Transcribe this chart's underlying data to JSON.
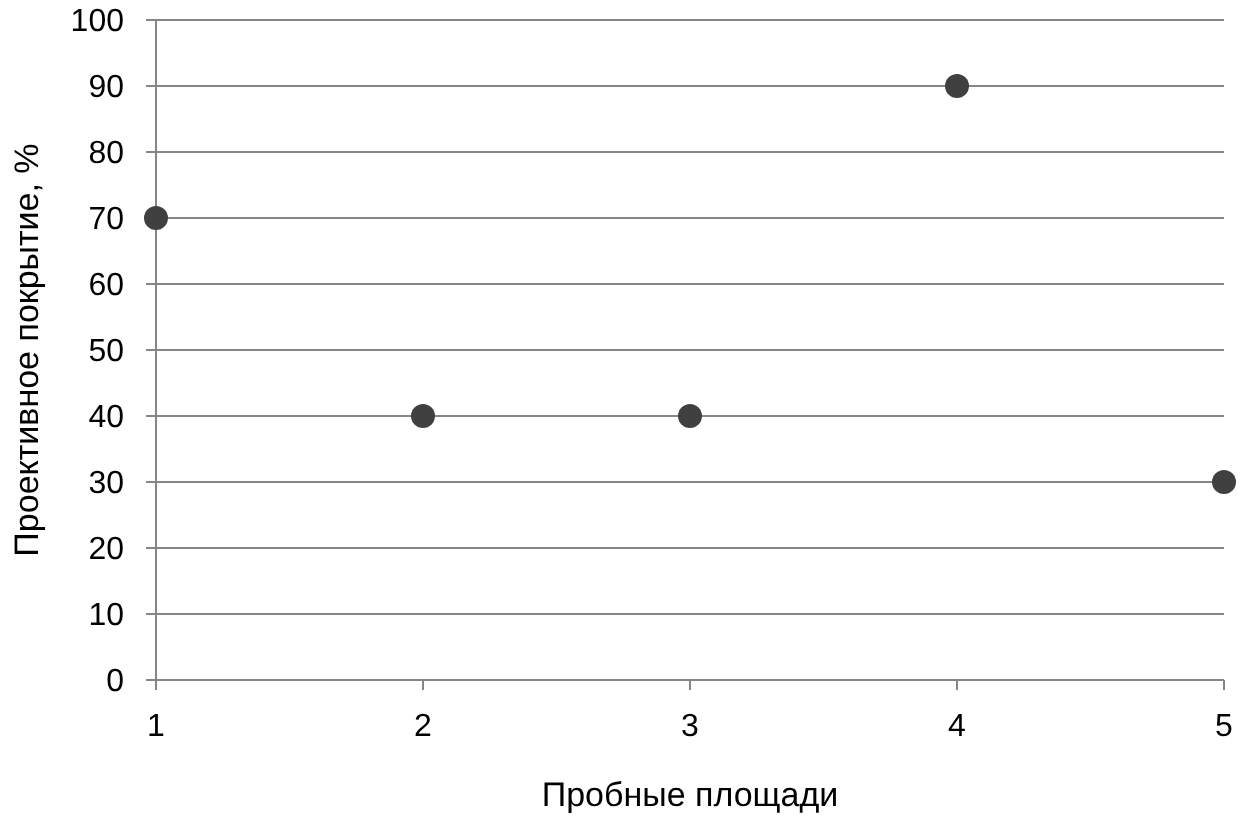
{
  "chart_data": {
    "type": "scatter",
    "xlabel": "Пробные площади",
    "ylabel": "Проективное покрытие, %",
    "x": [
      1,
      2,
      3,
      4,
      5
    ],
    "series": [
      {
        "color": "#404040",
        "values": [
          70,
          40,
          40,
          90,
          30
        ]
      }
    ],
    "xlim": [
      1,
      5
    ],
    "xticks": [
      1,
      2,
      3,
      4,
      5
    ],
    "ylim": [
      0,
      100
    ],
    "yticks": [
      0,
      10,
      20,
      30,
      40,
      50,
      60,
      70,
      80,
      90,
      100
    ],
    "grid": "y",
    "marker": "circle"
  }
}
